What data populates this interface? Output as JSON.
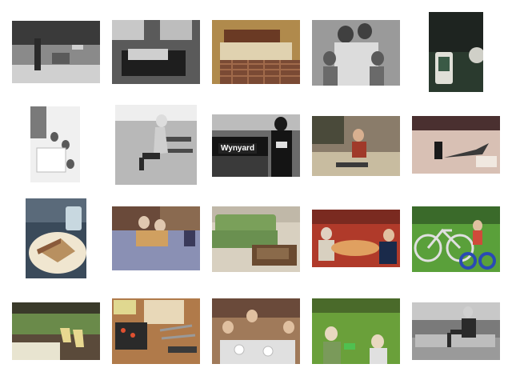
{
  "gallery": {
    "thumbnails": [
      {
        "scene": "bw-park-bench-men",
        "palette": [
          "#8a8a8a",
          "#3a3a3a",
          "#d0d0d0"
        ]
      },
      {
        "scene": "bw-bedroom",
        "palette": [
          "#5a5a5a",
          "#1e1e1e",
          "#c8c8c8"
        ]
      },
      {
        "scene": "bedroom-plaid-bed",
        "palette": [
          "#b08a4c",
          "#6a3a24",
          "#e0d2b0"
        ]
      },
      {
        "scene": "bw-family-portrait",
        "palette": [
          "#9a9a9a",
          "#404040",
          "#dcdcdc"
        ]
      },
      {
        "scene": "dark-table-cup",
        "palette": [
          "#1e2420",
          "#3a5a46",
          "#e0e0d8"
        ]
      },
      {
        "scene": "bw-kids-at-table",
        "palette": [
          "#f0f0f0",
          "#7a7a7a",
          "#ffffff"
        ]
      },
      {
        "scene": "bw-woman-on-bench",
        "palette": [
          "#b8b8b8",
          "#2a2a2a",
          "#eeeeee"
        ]
      },
      {
        "scene": "bw-station-sign",
        "palette": [
          "#6a6a6a",
          "#141414",
          "#bcbcbc"
        ],
        "sign_text": "Wynyard"
      },
      {
        "scene": "child-living-room-floor",
        "palette": [
          "#8a7c6a",
          "#4a4a3a",
          "#c8bca0"
        ]
      },
      {
        "scene": "man-lying-on-ground",
        "palette": [
          "#a88a80",
          "#4a3030",
          "#d8c0b4"
        ]
      },
      {
        "scene": "sandwich-plate",
        "palette": [
          "#b89060",
          "#3a4a5a",
          "#f0e6d0"
        ]
      },
      {
        "scene": "kids-on-bed",
        "palette": [
          "#8a90b4",
          "#6a4a3a",
          "#e0c8b0"
        ]
      },
      {
        "scene": "green-sofa-living-room",
        "palette": [
          "#7aa05a",
          "#6a4a30",
          "#d8d0c0"
        ]
      },
      {
        "scene": "people-at-red-table",
        "palette": [
          "#b03a2a",
          "#4a2a3a",
          "#e0a060"
        ]
      },
      {
        "scene": "child-on-bicycle-grass",
        "palette": [
          "#5aa03a",
          "#2a4ab4",
          "#e0e0e0"
        ]
      },
      {
        "scene": "porch-chairs-garden",
        "palette": [
          "#6a8a4a",
          "#3a3a2a",
          "#e8e4d0"
        ]
      },
      {
        "scene": "desk-with-tools",
        "palette": [
          "#b07a4a",
          "#2a2a2a",
          "#e8d8b8"
        ]
      },
      {
        "scene": "kids-party-table",
        "palette": [
          "#a07a5a",
          "#e0e0e0",
          "#6a4a3a"
        ]
      },
      {
        "scene": "kids-on-grass",
        "palette": [
          "#6aa03a",
          "#4a6a2a",
          "#e8d8c0"
        ]
      },
      {
        "scene": "bw-man-on-wall",
        "palette": [
          "#7a7a7a",
          "#2a2a2a",
          "#c8c8c8"
        ]
      }
    ]
  }
}
